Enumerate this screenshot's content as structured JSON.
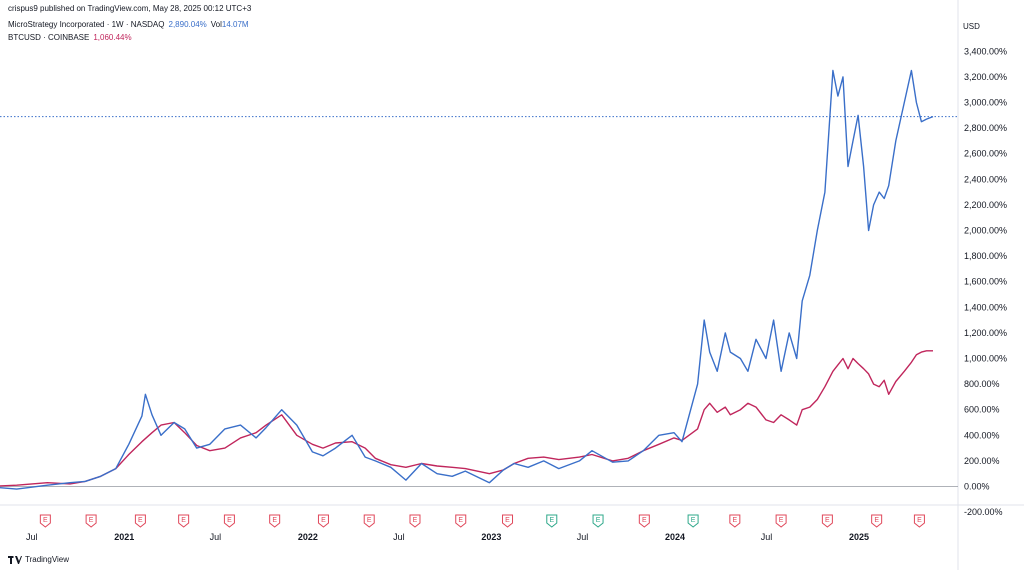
{
  "header": {
    "publisher": "crispus9 published on TradingView.com, May 28, 2025 00:12 UTC+3",
    "currency": "USD"
  },
  "legend": {
    "series1_label": "MicroStrategy Incorporated · 1W · NASDAQ",
    "series1_value": "2,890.04%",
    "volume_label": "Vol",
    "volume_value": "14.07M",
    "series2_label": "BTCUSD · COINBASE",
    "series2_value": "1,060.44%"
  },
  "branding": {
    "name": "TradingView",
    "icon": "tradingview-logo-icon"
  },
  "colors": {
    "mstr": "#3a6fc9",
    "btc": "#c0265c",
    "earnings_red": "#e0475a",
    "earnings_green": "#2ea88a",
    "dotted_line": "#3a6fc9"
  },
  "chart_data": {
    "type": "line",
    "y_unit": "%",
    "ylim": [
      -200,
      3400
    ],
    "y_ticks": [
      -200,
      0,
      200,
      400,
      600,
      800,
      1000,
      1200,
      1400,
      1600,
      1800,
      2000,
      2200,
      2400,
      2600,
      2800,
      3000,
      3200,
      3400
    ],
    "y_tick_labels": [
      "-200.00%",
      "0.00%",
      "200.00%",
      "400.00%",
      "600.00%",
      "800.00%",
      "1,000.00%",
      "1,200.00%",
      "1,400.00%",
      "1,600.00%",
      "1,800.00%",
      "2,000.00%",
      "2,200.00%",
      "2,400.00%",
      "2,600.00%",
      "2,800.00%",
      "3,000.00%",
      "3,200.00%",
      "3,400.00%"
    ],
    "xlim": [
      "2020-04-01",
      "2025-06-01"
    ],
    "x_ticks": [
      {
        "date": "2020-07-01",
        "label": "Jul",
        "bold": false
      },
      {
        "date": "2021-01-01",
        "label": "2021",
        "bold": true
      },
      {
        "date": "2021-07-01",
        "label": "Jul",
        "bold": false
      },
      {
        "date": "2022-01-01",
        "label": "2022",
        "bold": true
      },
      {
        "date": "2022-07-01",
        "label": "Jul",
        "bold": false
      },
      {
        "date": "2023-01-01",
        "label": "2023",
        "bold": true
      },
      {
        "date": "2023-07-01",
        "label": "Jul",
        "bold": false
      },
      {
        "date": "2024-01-01",
        "label": "2024",
        "bold": true
      },
      {
        "date": "2024-07-01",
        "label": "Jul",
        "bold": false
      },
      {
        "date": "2025-01-01",
        "label": "2025",
        "bold": true
      }
    ],
    "reference_line": 2890.04,
    "series": [
      {
        "name": "MicroStrategy Incorporated",
        "x": [
          "2020-04-01",
          "2020-06-01",
          "2020-08-01",
          "2020-09-15",
          "2020-10-15",
          "2020-11-15",
          "2020-12-15",
          "2021-01-10",
          "2021-02-05",
          "2021-02-12",
          "2021-02-25",
          "2021-03-15",
          "2021-04-10",
          "2021-05-01",
          "2021-05-25",
          "2021-06-20",
          "2021-07-20",
          "2021-08-20",
          "2021-09-20",
          "2021-10-10",
          "2021-11-10",
          "2021-12-10",
          "2022-01-10",
          "2022-01-31",
          "2022-02-25",
          "2022-03-30",
          "2022-04-25",
          "2022-05-15",
          "2022-06-15",
          "2022-07-15",
          "2022-08-15",
          "2022-09-15",
          "2022-10-15",
          "2022-11-10",
          "2022-12-28",
          "2023-01-25",
          "2023-02-15",
          "2023-03-15",
          "2023-04-15",
          "2023-05-15",
          "2023-06-25",
          "2023-07-20",
          "2023-08-30",
          "2023-09-30",
          "2023-10-30",
          "2023-11-30",
          "2023-12-30",
          "2024-01-15",
          "2024-02-15",
          "2024-02-28",
          "2024-03-10",
          "2024-03-25",
          "2024-04-10",
          "2024-04-20",
          "2024-05-10",
          "2024-05-25",
          "2024-06-10",
          "2024-06-30",
          "2024-07-15",
          "2024-07-30",
          "2024-08-15",
          "2024-08-30",
          "2024-09-10",
          "2024-09-25",
          "2024-10-10",
          "2024-10-25",
          "2024-11-10",
          "2024-11-20",
          "2024-11-30",
          "2024-12-10",
          "2024-12-20",
          "2024-12-30",
          "2025-01-10",
          "2025-01-20",
          "2025-01-30",
          "2025-02-10",
          "2025-02-20",
          "2025-03-01",
          "2025-03-15",
          "2025-04-01",
          "2025-04-15",
          "2025-04-25",
          "2025-05-05",
          "2025-05-15",
          "2025-05-28"
        ],
        "values": [
          0,
          -20,
          10,
          30,
          40,
          80,
          140,
          330,
          550,
          720,
          560,
          400,
          500,
          450,
          300,
          330,
          450,
          480,
          380,
          460,
          600,
          480,
          270,
          240,
          300,
          400,
          230,
          200,
          150,
          50,
          180,
          100,
          80,
          120,
          30,
          130,
          180,
          150,
          200,
          140,
          200,
          280,
          190,
          200,
          280,
          400,
          420,
          350,
          800,
          1300,
          1050,
          900,
          1200,
          1050,
          1000,
          900,
          1150,
          1000,
          1300,
          900,
          1200,
          1000,
          1450,
          1650,
          2000,
          2300,
          3250,
          3050,
          3200,
          2500,
          2700,
          2900,
          2500,
          2000,
          2200,
          2300,
          2250,
          2350,
          2700,
          3000,
          3250,
          3000,
          2850,
          2870,
          2890
        ]
      },
      {
        "name": "BTCUSD",
        "x": [
          "2020-04-01",
          "2020-06-01",
          "2020-08-01",
          "2020-09-15",
          "2020-10-15",
          "2020-11-15",
          "2020-12-15",
          "2021-01-10",
          "2021-02-05",
          "2021-02-25",
          "2021-03-15",
          "2021-04-10",
          "2021-05-01",
          "2021-05-25",
          "2021-06-20",
          "2021-07-20",
          "2021-08-20",
          "2021-09-20",
          "2021-10-10",
          "2021-11-10",
          "2021-12-10",
          "2022-01-10",
          "2022-01-31",
          "2022-02-25",
          "2022-03-30",
          "2022-04-25",
          "2022-05-15",
          "2022-06-15",
          "2022-07-15",
          "2022-08-15",
          "2022-09-15",
          "2022-10-15",
          "2022-11-10",
          "2022-12-28",
          "2023-01-25",
          "2023-02-15",
          "2023-03-15",
          "2023-04-15",
          "2023-05-15",
          "2023-06-25",
          "2023-07-20",
          "2023-08-30",
          "2023-09-30",
          "2023-10-30",
          "2023-11-30",
          "2023-12-30",
          "2024-01-15",
          "2024-02-15",
          "2024-02-28",
          "2024-03-10",
          "2024-03-25",
          "2024-04-10",
          "2024-04-20",
          "2024-05-10",
          "2024-05-25",
          "2024-06-10",
          "2024-06-30",
          "2024-07-15",
          "2024-07-30",
          "2024-08-15",
          "2024-08-30",
          "2024-09-10",
          "2024-09-25",
          "2024-10-10",
          "2024-10-25",
          "2024-11-10",
          "2024-11-20",
          "2024-11-30",
          "2024-12-10",
          "2024-12-20",
          "2024-12-30",
          "2025-01-10",
          "2025-01-20",
          "2025-01-30",
          "2025-02-10",
          "2025-02-20",
          "2025-03-01",
          "2025-03-15",
          "2025-04-01",
          "2025-04-15",
          "2025-04-25",
          "2025-05-05",
          "2025-05-15",
          "2025-05-28"
        ],
        "values": [
          0,
          10,
          30,
          20,
          40,
          80,
          140,
          250,
          350,
          420,
          480,
          500,
          420,
          320,
          280,
          300,
          380,
          420,
          480,
          560,
          400,
          330,
          300,
          340,
          350,
          300,
          220,
          170,
          150,
          180,
          160,
          150,
          140,
          100,
          130,
          180,
          220,
          230,
          210,
          230,
          250,
          200,
          220,
          280,
          330,
          380,
          360,
          450,
          600,
          650,
          580,
          620,
          560,
          600,
          650,
          620,
          520,
          500,
          560,
          520,
          480,
          600,
          620,
          680,
          780,
          900,
          950,
          1000,
          920,
          1000,
          960,
          920,
          880,
          800,
          780,
          830,
          720,
          820,
          900,
          970,
          1030,
          1050,
          1060,
          1060
        ]
      }
    ],
    "earnings": [
      {
        "date": "2020-07-28",
        "label": "E",
        "type": "red"
      },
      {
        "date": "2020-10-27",
        "label": "E",
        "type": "red"
      },
      {
        "date": "2021-02-02",
        "label": "E",
        "type": "red"
      },
      {
        "date": "2021-04-29",
        "label": "E",
        "type": "red"
      },
      {
        "date": "2021-07-29",
        "label": "E",
        "type": "red"
      },
      {
        "date": "2021-10-27",
        "label": "E",
        "type": "red"
      },
      {
        "date": "2022-02-01",
        "label": "E",
        "type": "red"
      },
      {
        "date": "2022-05-03",
        "label": "E",
        "type": "red"
      },
      {
        "date": "2022-08-02",
        "label": "E",
        "type": "red"
      },
      {
        "date": "2022-11-01",
        "label": "E",
        "type": "red"
      },
      {
        "date": "2023-02-02",
        "label": "E",
        "type": "red"
      },
      {
        "date": "2023-05-01",
        "label": "E",
        "type": "green"
      },
      {
        "date": "2023-08-01",
        "label": "E",
        "type": "green"
      },
      {
        "date": "2023-11-01",
        "label": "E",
        "type": "red"
      },
      {
        "date": "2024-02-06",
        "label": "E",
        "type": "green"
      },
      {
        "date": "2024-04-29",
        "label": "E",
        "type": "red"
      },
      {
        "date": "2024-07-30",
        "label": "E",
        "type": "red"
      },
      {
        "date": "2024-10-30",
        "label": "E",
        "type": "red"
      },
      {
        "date": "2025-02-05",
        "label": "E",
        "type": "red"
      },
      {
        "date": "2025-05-01",
        "label": "E",
        "type": "red"
      }
    ]
  }
}
